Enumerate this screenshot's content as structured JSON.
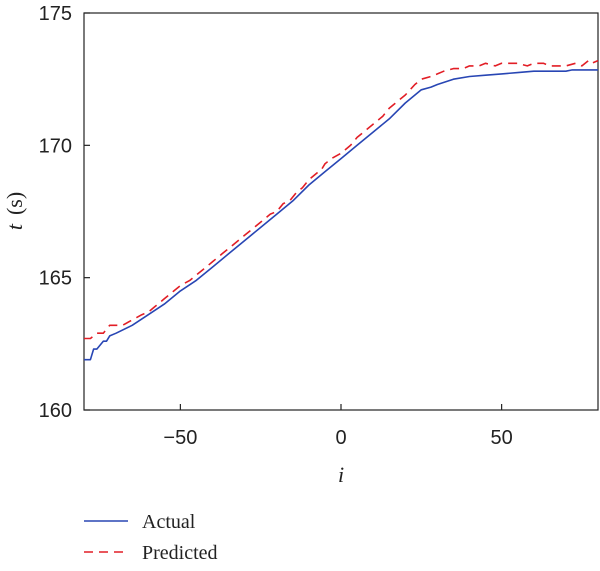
{
  "chart_data": {
    "type": "line",
    "title": "",
    "xlabel": "i",
    "ylabel": "t",
    "ylabel_unit": "(s)",
    "xlim": [
      -80,
      80
    ],
    "ylim": [
      160,
      175
    ],
    "xticks": [
      -50,
      0,
      50
    ],
    "xtick_labels": [
      "−50",
      "0",
      "50"
    ],
    "yticks": [
      160,
      165,
      170,
      175
    ],
    "ytick_labels": [
      "160",
      "165",
      "170",
      "175"
    ],
    "grid": false,
    "legend_position": "bottom-left, below plot",
    "series": [
      {
        "name": "Actual",
        "color": "#2846b4",
        "style": "solid",
        "x": [
          -80,
          -78,
          -77,
          -76,
          -74,
          -73,
          -72,
          -70,
          -65,
          -60,
          -55,
          -50,
          -45,
          -40,
          -35,
          -30,
          -25,
          -20,
          -15,
          -10,
          -5,
          0,
          5,
          10,
          15,
          20,
          25,
          28,
          30,
          35,
          40,
          45,
          50,
          55,
          60,
          65,
          70,
          72,
          75,
          80
        ],
        "y": [
          161.9,
          161.9,
          162.3,
          162.3,
          162.6,
          162.6,
          162.8,
          162.9,
          163.2,
          163.6,
          164.0,
          164.5,
          164.9,
          165.4,
          165.9,
          166.4,
          166.9,
          167.4,
          167.9,
          168.5,
          169.0,
          169.5,
          170.0,
          170.5,
          171.0,
          171.6,
          172.1,
          172.2,
          172.3,
          172.5,
          172.6,
          172.65,
          172.7,
          172.75,
          172.8,
          172.8,
          172.8,
          172.85,
          172.85,
          172.85
        ]
      },
      {
        "name": "Predicted",
        "color": "#e21e26",
        "style": "dashed",
        "x": [
          -80,
          -78,
          -76,
          -74,
          -72,
          -70,
          -68,
          -65,
          -62,
          -60,
          -58,
          -55,
          -52,
          -50,
          -47,
          -45,
          -42,
          -40,
          -37,
          -35,
          -32,
          -30,
          -27,
          -25,
          -22,
          -20,
          -18,
          -16,
          -14,
          -12,
          -10,
          -8,
          -6,
          -5,
          -3,
          0,
          3,
          5,
          8,
          10,
          13,
          15,
          18,
          20,
          23,
          25,
          28,
          30,
          32,
          35,
          38,
          40,
          43,
          45,
          48,
          50,
          53,
          55,
          58,
          60,
          63,
          65,
          68,
          70,
          73,
          75,
          77,
          78,
          80
        ],
        "y": [
          162.7,
          162.7,
          162.9,
          162.9,
          163.2,
          163.2,
          163.2,
          163.4,
          163.6,
          163.7,
          163.9,
          164.2,
          164.5,
          164.7,
          164.9,
          165.1,
          165.4,
          165.6,
          165.9,
          166.1,
          166.4,
          166.6,
          166.9,
          167.1,
          167.4,
          167.5,
          167.8,
          167.9,
          168.2,
          168.4,
          168.7,
          168.9,
          169.1,
          169.3,
          169.5,
          169.7,
          170.0,
          170.3,
          170.6,
          170.8,
          171.1,
          171.4,
          171.7,
          171.9,
          172.3,
          172.5,
          172.6,
          172.7,
          172.8,
          172.9,
          172.9,
          173.0,
          173.0,
          173.1,
          173.0,
          173.1,
          173.1,
          173.1,
          173.0,
          173.1,
          173.1,
          173.0,
          173.0,
          173.0,
          173.1,
          173.0,
          173.2,
          173.1,
          173.2
        ]
      }
    ]
  }
}
